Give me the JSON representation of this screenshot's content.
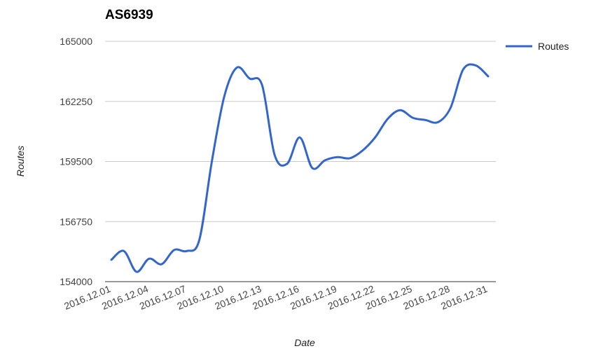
{
  "chart_data": {
    "type": "line",
    "title": "AS6939",
    "xlabel": "Date",
    "ylabel": "Routes",
    "ylim": [
      154000,
      165000
    ],
    "yticks": [
      "154000",
      "156750",
      "159500",
      "162250",
      "165000"
    ],
    "xtick_labels": [
      "2016.12.01",
      "2016.12.04",
      "2016.12.07",
      "2016.12.10",
      "2016.12.13",
      "2016.12.16",
      "2016.12.19",
      "2016.12.22",
      "2016.12.25",
      "2016.12.28",
      "2016.12.31"
    ],
    "grid": true,
    "legend_position": "right",
    "series": [
      {
        "name": "Routes",
        "color": "#3366cc",
        "x": [
          "2016.12.01",
          "2016.12.02",
          "2016.12.03",
          "2016.12.04",
          "2016.12.05",
          "2016.12.06",
          "2016.12.07",
          "2016.12.08",
          "2016.12.09",
          "2016.12.10",
          "2016.12.11",
          "2016.12.12",
          "2016.12.13",
          "2016.12.14",
          "2016.12.15",
          "2016.12.16",
          "2016.12.17",
          "2016.12.18",
          "2016.12.19",
          "2016.12.20",
          "2016.12.21",
          "2016.12.22",
          "2016.12.23",
          "2016.12.24",
          "2016.12.25",
          "2016.12.26",
          "2016.12.27",
          "2016.12.28",
          "2016.12.29",
          "2016.12.30",
          "2016.12.31"
        ],
        "values": [
          155000,
          155400,
          154450,
          155050,
          154800,
          155450,
          155400,
          155900,
          159500,
          162500,
          163800,
          163300,
          163000,
          159800,
          159400,
          160600,
          159200,
          159550,
          159700,
          159650,
          160000,
          160600,
          161450,
          161850,
          161500,
          161400,
          161300,
          161950,
          163700,
          163900,
          163400
        ]
      }
    ]
  }
}
